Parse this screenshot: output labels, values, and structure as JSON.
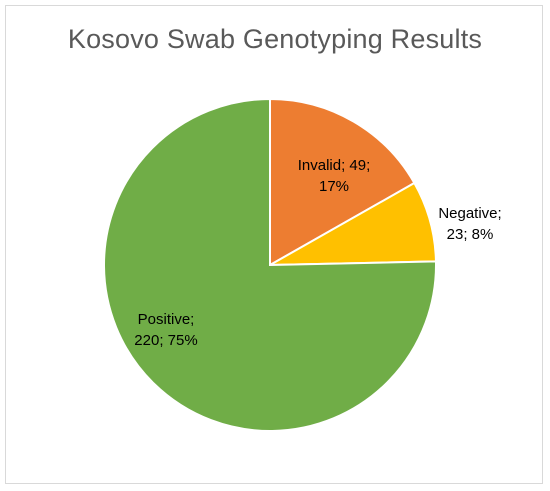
{
  "chart_data": {
    "type": "pie",
    "title": "Kosovo Swab Genotyping Results",
    "slices": [
      {
        "name": "Invalid",
        "value": 49,
        "percent": "17%",
        "label_line1": "Invalid; 49;",
        "label_line2": "17%",
        "color": "#ED7D31"
      },
      {
        "name": "Negative",
        "value": 23,
        "percent": "8%",
        "label_line1": "Negative;",
        "label_line2": "23; 8%",
        "color": "#FFC000"
      },
      {
        "name": "Positive",
        "value": 220,
        "percent": "75%",
        "label_line1": "Positive;",
        "label_line2": "220; 75%",
        "color": "#70AD47"
      }
    ],
    "start_angle": "12 o'clock",
    "direction": "clockwise",
    "legend": "none"
  }
}
